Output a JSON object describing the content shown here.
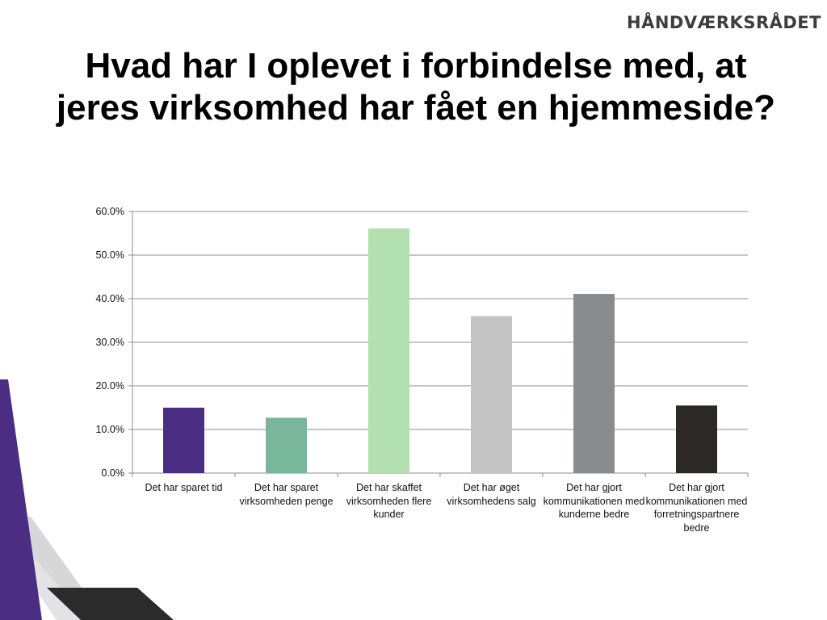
{
  "logo": "HÅNDVÆRKSRÅDET",
  "title": "Hvad har I oplevet i forbindelse med, at jeres virksomhed har fået en hjemmeside?",
  "colors": {
    "accent_purple": "#4b2d84",
    "stripe_gray": "#d7d7d9",
    "stripe_dark": "#2b2b2b"
  },
  "chart_data": {
    "type": "bar",
    "title": "",
    "xlabel": "",
    "ylabel": "",
    "ylim": [
      0,
      60
    ],
    "y_ticks": [
      "0.0%",
      "10.0%",
      "20.0%",
      "30.0%",
      "40.0%",
      "50.0%",
      "60.0%"
    ],
    "y_tick_values": [
      0,
      10,
      20,
      30,
      40,
      50,
      60
    ],
    "grid": true,
    "categories": [
      "Det har sparet tid",
      "Det har sparet virksomheden penge",
      "Det har skaffet virksomheden flere kunder",
      "Det har øget virksomhedens salg",
      "Det har gjort kommunikationen med kunderne bedre",
      "Det har gjort kommunikationen med forretningspartnere bedre"
    ],
    "values": [
      15,
      12.7,
      56.1,
      36,
      41.1,
      15.5
    ],
    "bar_colors": [
      "#4b2d84",
      "#79b79d",
      "#b2e0b1",
      "#c4c4c4",
      "#8a8b8e",
      "#2c2828"
    ]
  }
}
